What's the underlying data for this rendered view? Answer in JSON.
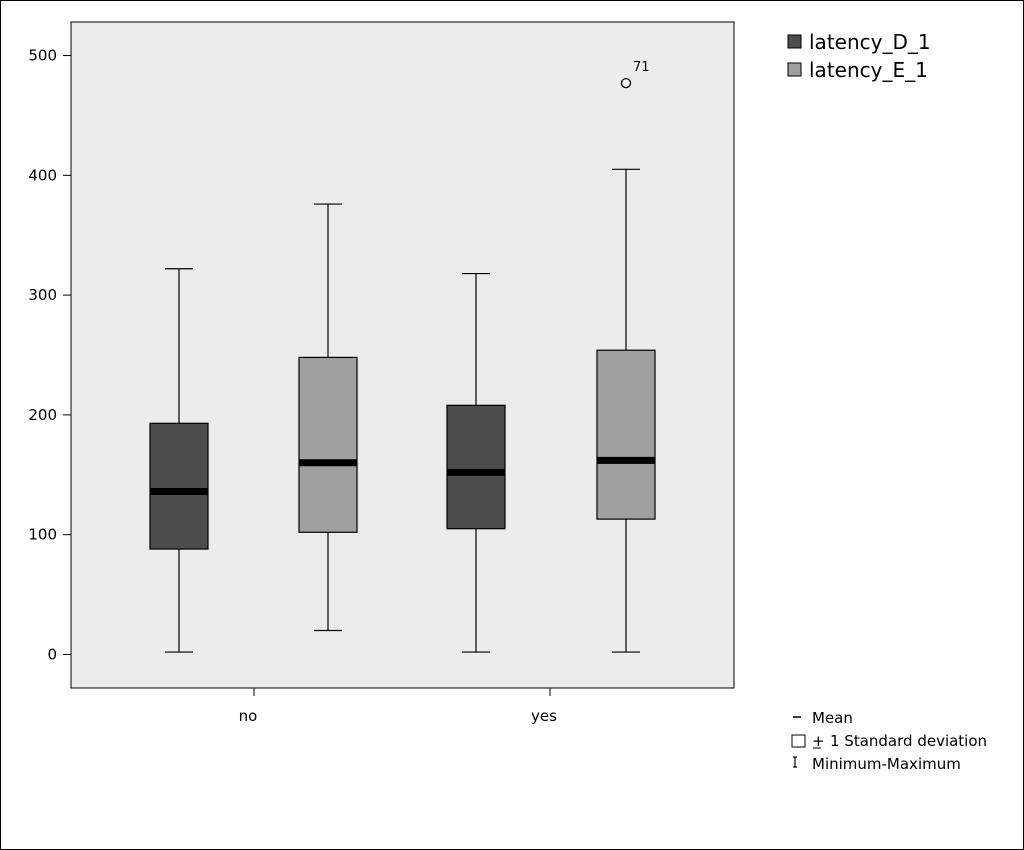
{
  "chart_data": {
    "type": "box",
    "categories": [
      "no",
      "yes"
    ],
    "ylim": [
      -28,
      528
    ],
    "yticks": [
      0,
      100,
      200,
      300,
      400,
      500
    ],
    "grid": false,
    "legend_position": "top-right",
    "series": [
      {
        "name": "latency_D_1",
        "color": "#4d4d4d",
        "boxes": [
          {
            "min": 2,
            "q1": 88,
            "median": 136,
            "q3": 193,
            "max": 322
          },
          {
            "min": 2,
            "q1": 105,
            "median": 152,
            "q3": 208,
            "max": 318
          }
        ]
      },
      {
        "name": "latency_E_1",
        "color": "#a0a0a0",
        "boxes": [
          {
            "min": 20,
            "q1": 102,
            "median": 160,
            "q3": 248,
            "max": 376
          },
          {
            "min": 2,
            "q1": 113,
            "median": 162,
            "q3": 254,
            "max": 405
          }
        ]
      }
    ],
    "outliers": [
      {
        "category": "yes",
        "series": "latency_E_1",
        "value": 477,
        "label": "71"
      }
    ],
    "key": {
      "mean": "Mean",
      "sd": "1 Standard deviation",
      "sd_symbol": "+",
      "range": "Minimum-Maximum"
    }
  },
  "colors": {
    "plot_background": "#ececec",
    "whisker": "#000000",
    "median": "#000000"
  }
}
